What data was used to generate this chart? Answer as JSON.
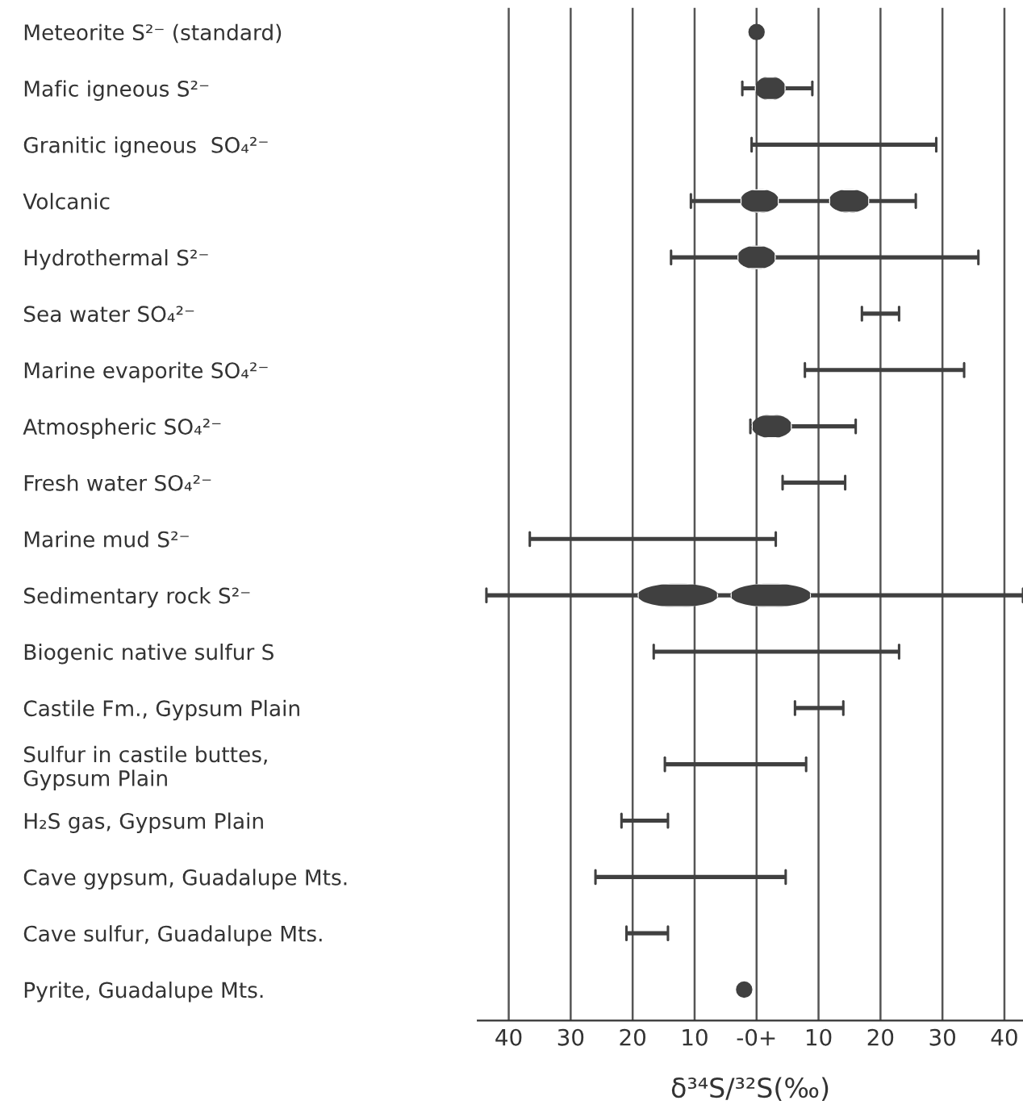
{
  "chart_data": {
    "type": "bar",
    "orientation": "horizontal",
    "xlabel": "δ³⁴S/³²S(‰)",
    "categories": [
      "Meteorite S²⁻ (standard)",
      "Mafic igneous S²⁻",
      "Granitic igneous  SO₄²⁻",
      "Volcanic",
      "Hydrothermal S²⁻",
      "Sea water SO₄²⁻",
      "Marine evaporite SO₄²⁻",
      "Atmospheric SO₄²⁻",
      "Fresh water SO₄²⁻",
      "Marine mud S²⁻",
      "Sedimentary rock S²⁻",
      "Biogenic native sulfur S",
      "Castile Fm., Gypsum Plain",
      "Sulfur in castile buttes,\nGypsum Plain",
      "H₂S gas, Gypsum Plain",
      "Cave gypsum, Guadalupe Mts.",
      "Cave sulfur, Guadalupe Mts.",
      "Pyrite, Guadalupe Mts."
    ],
    "series": [
      {
        "type": "bar",
        "line_style": "solid",
        "color": "#404040",
        "base": [
          null,
          -2.3,
          -0.8,
          -10.6,
          -13.8,
          17,
          7.8,
          -1,
          4.2,
          -36.6,
          -43.6,
          -16.6,
          6.2,
          -14.8,
          -21.8,
          -26,
          -21,
          null
        ],
        "values": [
          null,
          11.3,
          29.8,
          36.3,
          49.6,
          6,
          25.7,
          17,
          10.1,
          39.7,
          86.6,
          39.6,
          7.8,
          22.8,
          7.5,
          30.7,
          6.7,
          null
        ]
      },
      {
        "type": "bar",
        "color": "#404040",
        "base": [
          null,
          -0.3,
          null,
          -2.6,
          -3.1,
          null,
          null,
          -0.8,
          null,
          null,
          -19.2,
          null,
          null,
          null,
          null,
          null,
          null,
          null
        ],
        "values": [
          null,
          5,
          null,
          6.2,
          6.2,
          null,
          null,
          6.5,
          null,
          null,
          13,
          null,
          null,
          null,
          null,
          null,
          null,
          null
        ]
      },
      {
        "type": "bar",
        "color": "#404040",
        "base": [
          null,
          null,
          null,
          11.7,
          null,
          null,
          null,
          null,
          null,
          null,
          -4.2,
          null,
          null,
          null,
          null,
          null,
          null,
          null
        ],
        "values": [
          null,
          null,
          null,
          6.5,
          null,
          null,
          null,
          null,
          null,
          null,
          13,
          null,
          null,
          null,
          null,
          null,
          null,
          null
        ]
      },
      {
        "type": "scatter",
        "marker": "circle",
        "color": "#404040",
        "values": [
          0,
          null,
          null,
          null,
          null,
          null,
          null,
          null,
          null,
          null,
          null,
          null,
          null,
          null,
          null,
          null,
          null,
          -2
        ]
      }
    ],
    "xlim": [
      -45,
      43
    ],
    "xticks": [
      {
        "value": -40,
        "label": "40"
      },
      {
        "value": -30,
        "label": "30"
      },
      {
        "value": -20,
        "label": "20"
      },
      {
        "value": -10,
        "label": "10"
      },
      {
        "value": 0,
        "label": "-0+"
      },
      {
        "value": 10,
        "label": "10"
      },
      {
        "value": 20,
        "label": "20"
      },
      {
        "value": 30,
        "label": "30"
      },
      {
        "value": 40,
        "label": "40"
      }
    ],
    "grid": "x"
  }
}
